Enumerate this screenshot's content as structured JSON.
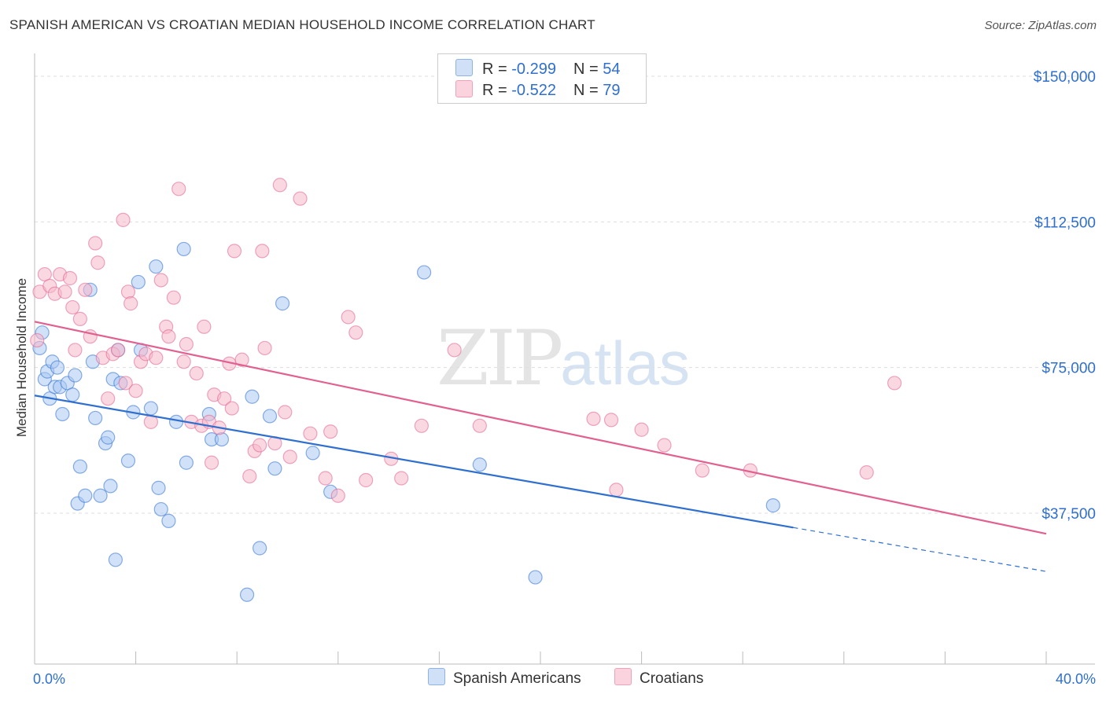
{
  "header": {
    "title": "SPANISH AMERICAN VS CROATIAN MEDIAN HOUSEHOLD INCOME CORRELATION CHART",
    "source": "Source: ZipAtlas.com"
  },
  "watermark": {
    "zip": "ZIP",
    "atlas": "atlas"
  },
  "legend_top": [
    {
      "r_label": "R = ",
      "r_value": "-0.299",
      "n_label": "N = ",
      "n_value": "54",
      "color": "#a9c8f2"
    },
    {
      "r_label": "R = ",
      "r_value": "-0.522",
      "n_label": "N = ",
      "n_value": "79",
      "color": "#f6b8ca"
    }
  ],
  "legend_bottom": [
    {
      "label": "Spanish Americans",
      "color": "#a9c8f2"
    },
    {
      "label": "Croatians",
      "color": "#f6b8ca"
    }
  ],
  "chart_data": {
    "type": "scatter",
    "title": "SPANISH AMERICAN VS CROATIAN MEDIAN HOUSEHOLD INCOME CORRELATION CHART",
    "xlabel": "",
    "ylabel": "Median Household Income",
    "xlim": [
      0,
      40
    ],
    "ylim": [
      15000,
      157500
    ],
    "x_tick_labels": [
      "0.0%",
      "40.0%"
    ],
    "y_ticks": [
      37500,
      75000,
      112500,
      150000
    ],
    "y_tick_labels": [
      "$37,500",
      "$75,000",
      "$112,500",
      "$150,000"
    ],
    "grid": true,
    "legend": "top-center",
    "series": [
      {
        "name": "Spanish Americans",
        "color": "#2e6fcf",
        "fill": "#a9c8f2",
        "points": [
          [
            0.2,
            80000
          ],
          [
            0.3,
            84000
          ],
          [
            0.4,
            72000
          ],
          [
            0.5,
            74000
          ],
          [
            0.6,
            67000
          ],
          [
            0.7,
            76500
          ],
          [
            0.8,
            70000
          ],
          [
            0.9,
            75000
          ],
          [
            1.0,
            70000
          ],
          [
            1.1,
            63000
          ],
          [
            1.3,
            71000
          ],
          [
            1.5,
            68000
          ],
          [
            1.6,
            73000
          ],
          [
            1.7,
            40000
          ],
          [
            1.8,
            49500
          ],
          [
            2.0,
            42000
          ],
          [
            2.2,
            95000
          ],
          [
            2.3,
            76500
          ],
          [
            2.4,
            62000
          ],
          [
            2.6,
            42000
          ],
          [
            2.8,
            55500
          ],
          [
            2.9,
            57000
          ],
          [
            3.0,
            44500
          ],
          [
            3.1,
            72000
          ],
          [
            3.2,
            25500
          ],
          [
            3.3,
            79500
          ],
          [
            3.4,
            71000
          ],
          [
            3.7,
            51000
          ],
          [
            3.9,
            63500
          ],
          [
            4.1,
            97000
          ],
          [
            4.2,
            79500
          ],
          [
            4.6,
            64500
          ],
          [
            4.8,
            101000
          ],
          [
            4.9,
            44000
          ],
          [
            5.0,
            38500
          ],
          [
            5.3,
            35500
          ],
          [
            5.6,
            61000
          ],
          [
            5.9,
            105500
          ],
          [
            6.0,
            50500
          ],
          [
            6.9,
            63000
          ],
          [
            7.0,
            56500
          ],
          [
            7.4,
            56500
          ],
          [
            8.4,
            16500
          ],
          [
            8.6,
            67500
          ],
          [
            8.9,
            28500
          ],
          [
            9.3,
            62500
          ],
          [
            9.5,
            49000
          ],
          [
            9.8,
            91500
          ],
          [
            11.0,
            53000
          ],
          [
            11.7,
            43000
          ],
          [
            15.4,
            99500
          ],
          [
            17.6,
            50000
          ],
          [
            19.8,
            21000
          ],
          [
            29.2,
            39500
          ]
        ]
      },
      {
        "name": "Croatians",
        "color": "#e2608f",
        "fill": "#f6b8ca",
        "points": [
          [
            0.1,
            82000
          ],
          [
            0.2,
            94500
          ],
          [
            0.4,
            99000
          ],
          [
            0.6,
            96000
          ],
          [
            0.8,
            94000
          ],
          [
            1.0,
            99000
          ],
          [
            1.2,
            94500
          ],
          [
            1.4,
            98000
          ],
          [
            1.5,
            90500
          ],
          [
            1.6,
            79500
          ],
          [
            1.8,
            87500
          ],
          [
            2.0,
            95000
          ],
          [
            2.2,
            83000
          ],
          [
            2.4,
            107000
          ],
          [
            2.5,
            102000
          ],
          [
            2.7,
            77500
          ],
          [
            2.9,
            67000
          ],
          [
            3.1,
            78500
          ],
          [
            3.3,
            79500
          ],
          [
            3.5,
            113000
          ],
          [
            3.6,
            71000
          ],
          [
            3.7,
            94500
          ],
          [
            3.8,
            91500
          ],
          [
            4.0,
            69000
          ],
          [
            4.2,
            76500
          ],
          [
            4.4,
            78500
          ],
          [
            4.6,
            61000
          ],
          [
            4.8,
            77500
          ],
          [
            5.0,
            97500
          ],
          [
            5.2,
            85500
          ],
          [
            5.3,
            83000
          ],
          [
            5.5,
            93000
          ],
          [
            5.7,
            121000
          ],
          [
            5.9,
            76500
          ],
          [
            6.0,
            81000
          ],
          [
            6.2,
            61000
          ],
          [
            6.4,
            73500
          ],
          [
            6.6,
            60000
          ],
          [
            6.7,
            85500
          ],
          [
            6.9,
            61000
          ],
          [
            7.0,
            50500
          ],
          [
            7.1,
            68000
          ],
          [
            7.3,
            59500
          ],
          [
            7.5,
            67000
          ],
          [
            7.7,
            76000
          ],
          [
            7.8,
            64500
          ],
          [
            7.9,
            105000
          ],
          [
            8.2,
            77000
          ],
          [
            8.5,
            47000
          ],
          [
            8.7,
            53500
          ],
          [
            8.9,
            55000
          ],
          [
            9.0,
            105000
          ],
          [
            9.1,
            80000
          ],
          [
            9.5,
            55500
          ],
          [
            9.7,
            122000
          ],
          [
            9.9,
            63500
          ],
          [
            10.1,
            52000
          ],
          [
            10.5,
            118500
          ],
          [
            10.9,
            58000
          ],
          [
            11.5,
            46500
          ],
          [
            11.7,
            58500
          ],
          [
            12.0,
            42000
          ],
          [
            12.4,
            88000
          ],
          [
            12.7,
            84000
          ],
          [
            13.1,
            46000
          ],
          [
            14.1,
            51500
          ],
          [
            14.5,
            46500
          ],
          [
            15.3,
            60000
          ],
          [
            16.6,
            79500
          ],
          [
            17.6,
            60000
          ],
          [
            22.8,
            61500
          ],
          [
            23.0,
            43500
          ],
          [
            24.0,
            59000
          ],
          [
            24.9,
            55000
          ],
          [
            26.4,
            48500
          ],
          [
            28.3,
            48500
          ],
          [
            32.9,
            48000
          ],
          [
            34.0,
            71000
          ],
          [
            22.1,
            61800
          ]
        ]
      }
    ],
    "trendlines": [
      {
        "series": "Spanish Americans",
        "x": [
          0,
          30
        ],
        "y": [
          67800,
          33800
        ],
        "dashed_to_x": 40,
        "dashed_to_y": 22500
      },
      {
        "series": "Croatians",
        "x": [
          0,
          40
        ],
        "y": [
          86800,
          32200
        ]
      }
    ]
  }
}
